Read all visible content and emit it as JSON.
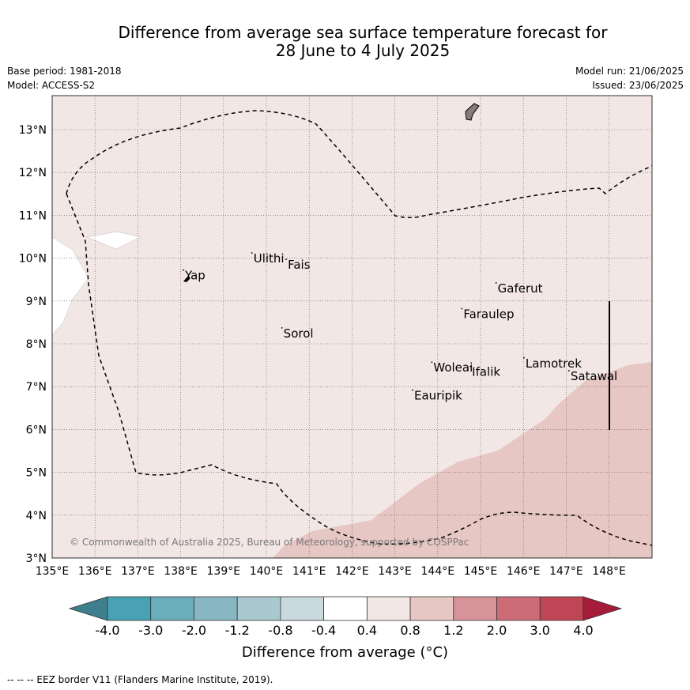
{
  "title": {
    "line1": "Difference from average sea surface temperature forecast for",
    "line2": "28 June to 4 July 2025"
  },
  "meta": {
    "base_period": "Base period: 1981-2018",
    "model": "Model: ACCESS-S2",
    "model_run": "Model run: 21/06/2025",
    "issued": "Issued: 23/06/2025"
  },
  "map": {
    "lon_range": [
      135,
      149
    ],
    "lat_range": [
      3,
      13.75
    ],
    "lon_ticks": [
      "135°E",
      "136°E",
      "137°E",
      "138°E",
      "139°E",
      "140°E",
      "141°E",
      "142°E",
      "143°E",
      "144°E",
      "145°E",
      "146°E",
      "147°E",
      "148°E"
    ],
    "lat_ticks": [
      "3°N",
      "4°N",
      "5°N",
      "6°N",
      "7°N",
      "8°N",
      "9°N",
      "10°N",
      "11°N",
      "12°N",
      "13°N"
    ],
    "anomaly_class_base": "0.4 to 0.8",
    "anomaly_class_base_color": "#f3e7e6",
    "anomaly_class_high": "0.8 to 1.2",
    "anomaly_class_high_color": "#e7c7c3",
    "copyright": "© Commonwealth of Australia 2025, Bureau of Meteorology, supported by COSPPac",
    "places": [
      {
        "name": "Ulithi",
        "lon": 139.7,
        "lat": 9.9
      },
      {
        "name": "Fais",
        "lon": 140.5,
        "lat": 9.75
      },
      {
        "name": "Yap",
        "lon": 138.1,
        "lat": 9.5
      },
      {
        "name": "Gaferut",
        "lon": 145.4,
        "lat": 9.2
      },
      {
        "name": "Faraulep",
        "lon": 144.6,
        "lat": 8.6
      },
      {
        "name": "Sorol",
        "lon": 140.4,
        "lat": 8.15
      },
      {
        "name": "Lamotrek",
        "lon": 146.05,
        "lat": 7.45
      },
      {
        "name": "Woleai",
        "lon": 143.9,
        "lat": 7.35
      },
      {
        "name": "Ifalik",
        "lon": 144.8,
        "lat": 7.25
      },
      {
        "name": "Satawal",
        "lon": 147.1,
        "lat": 7.15
      },
      {
        "name": "Eauripik",
        "lon": 143.45,
        "lat": 6.7
      }
    ]
  },
  "colorbar": {
    "title": "Difference from average (°C)",
    "labels": [
      "-4.0",
      "-3.0",
      "-2.0",
      "-1.2",
      "-0.8",
      "-0.4",
      "0.4",
      "0.8",
      "1.2",
      "2.0",
      "3.0",
      "4.0"
    ],
    "colors": [
      "#3d7f8c",
      "#49a2b3",
      "#6aaebc",
      "#88b7c3",
      "#a9c9cf",
      "#c9d9de",
      "#ffffff",
      "#f3e7e6",
      "#e7c7c3",
      "#d8939a",
      "#cd6b77",
      "#c04655",
      "#a51c3a"
    ]
  },
  "footer": "--  --  -- EEZ border V11 (Flanders Marine Institute, 2019)."
}
